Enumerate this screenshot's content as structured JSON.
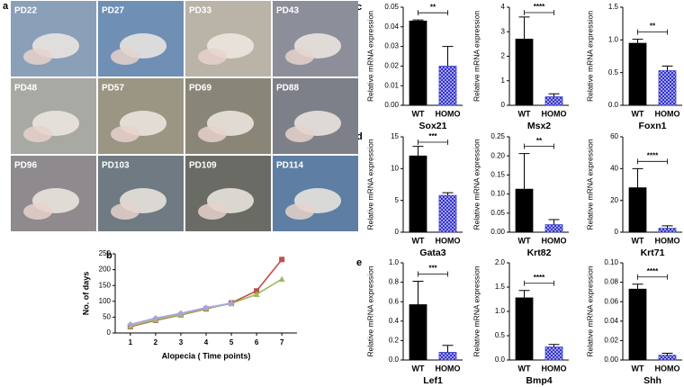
{
  "panel_labels": [
    "a",
    "b",
    "c",
    "d",
    "e"
  ],
  "photos": [
    "PD22",
    "PD27",
    "PD33",
    "PD43",
    "PD48",
    "PD57",
    "PD69",
    "PD88",
    "PD96",
    "PD103",
    "PD109",
    "PD114"
  ],
  "chart_data": [
    {
      "type": "line",
      "xlabel": "Alopecia ( Time points)",
      "ylabel": "No. of  days",
      "x": [
        1,
        2,
        3,
        4,
        5,
        6,
        7
      ],
      "xlim": [
        0.4,
        7.6
      ],
      "xticks": [
        1,
        2,
        3,
        4,
        5,
        6,
        7
      ],
      "ylim": [
        0,
        250
      ],
      "yticks": [
        0,
        50,
        100,
        150,
        200,
        250
      ],
      "series": [
        {
          "color": "#c0504d",
          "marker": "square",
          "values": [
            20,
            40,
            57,
            76,
            95,
            133,
            232
          ]
        },
        {
          "color": "#9bbb59",
          "marker": "triangle",
          "values": [
            22,
            42,
            58,
            78,
            93,
            122,
            170
          ]
        },
        {
          "color": "#a5a5e0",
          "marker": "diamond",
          "values": [
            27,
            47,
            62,
            80,
            94,
            null,
            null
          ]
        }
      ]
    },
    {
      "type": "bar",
      "xlabel": "Sox21",
      "ylabel": "Relative mRNA expression",
      "categories": [
        "WT",
        "HOMO"
      ],
      "colors": [
        "#000000",
        "#3333cc"
      ],
      "values": [
        0.043,
        0.02
      ],
      "errors": [
        0.0005,
        0.01
      ],
      "significance": "**",
      "ylim": [
        0,
        0.05
      ],
      "yticks": [
        {
          "value": 0,
          "label": "0.00"
        },
        0.01,
        0.02,
        0.03,
        0.04,
        0.05
      ]
    },
    {
      "type": "bar",
      "xlabel": "Msx2",
      "ylabel": "Relative mRNA expression",
      "categories": [
        "WT",
        "HOMO"
      ],
      "colors": [
        "#000000",
        "#3333cc"
      ],
      "values": [
        2.7,
        0.35
      ],
      "errors": [
        0.9,
        0.12
      ],
      "significance": "****",
      "ylim": [
        0,
        4
      ],
      "yticks": [
        0,
        1,
        2,
        3,
        4
      ]
    },
    {
      "type": "bar",
      "xlabel": "Foxn1",
      "ylabel": "Relative mRNA expression",
      "categories": [
        "WT",
        "HOMO"
      ],
      "colors": [
        "#000000",
        "#3333cc"
      ],
      "values": [
        0.95,
        0.53
      ],
      "errors": [
        0.06,
        0.07
      ],
      "significance": "**",
      "ylim": [
        0,
        1.5
      ],
      "yticks": [
        {
          "value": 0,
          "label": "0.0"
        },
        0.5,
        {
          "value": 1,
          "label": "1.0"
        },
        1.5
      ]
    },
    {
      "type": "bar",
      "xlabel": "Gata3",
      "ylabel": "Relative mRNA expression",
      "categories": [
        "WT",
        "HOMO"
      ],
      "colors": [
        "#000000",
        "#3333cc"
      ],
      "values": [
        12,
        5.8
      ],
      "errors": [
        1.5,
        0.4
      ],
      "significance": "***",
      "ylim": [
        0,
        15
      ],
      "yticks": [
        0,
        5,
        10,
        15
      ]
    },
    {
      "type": "bar",
      "xlabel": "Krt82",
      "ylabel": "Relative mRNA expression",
      "categories": [
        "WT",
        "HOMO"
      ],
      "colors": [
        "#000000",
        "#3333cc"
      ],
      "values": [
        0.113,
        0.02
      ],
      "errors": [
        0.093,
        0.013
      ],
      "significance": "**",
      "ylim": [
        0,
        0.25
      ],
      "yticks": [
        {
          "value": 0,
          "label": "0.00"
        },
        0.05,
        {
          "value": 0.1,
          "label": "0.10"
        },
        0.15,
        {
          "value": 0.2,
          "label": "0.20"
        },
        0.25
      ]
    },
    {
      "type": "bar",
      "xlabel": "Krt71",
      "ylabel": "Relative mRNA expression",
      "categories": [
        "WT",
        "HOMO"
      ],
      "colors": [
        "#000000",
        "#3333cc"
      ],
      "values": [
        28,
        2.5
      ],
      "errors": [
        12,
        1.5
      ],
      "significance": "****",
      "ylim": [
        0,
        60
      ],
      "yticks": [
        0,
        20,
        40,
        60
      ]
    },
    {
      "type": "bar",
      "xlabel": "Lef1",
      "ylabel": "Relative mRNA expression",
      "categories": [
        "WT",
        "HOMO"
      ],
      "colors": [
        "#000000",
        "#3333cc"
      ],
      "values": [
        0.57,
        0.08
      ],
      "errors": [
        0.24,
        0.07
      ],
      "significance": "***",
      "ylim": [
        0,
        1
      ],
      "yticks": [
        {
          "value": 0,
          "label": "0.0"
        },
        0.2,
        0.4,
        0.6,
        0.8,
        {
          "value": 1,
          "label": "1.0"
        }
      ]
    },
    {
      "type": "bar",
      "xlabel": "Bmp4",
      "ylabel": "Relative mRNA expression",
      "categories": [
        "WT",
        "HOMO"
      ],
      "colors": [
        "#000000",
        "#3333cc"
      ],
      "values": [
        1.28,
        0.27
      ],
      "errors": [
        0.15,
        0.05
      ],
      "significance": "****",
      "ylim": [
        0,
        2
      ],
      "yticks": [
        {
          "value": 0,
          "label": "0.0"
        },
        0.5,
        {
          "value": 1,
          "label": "1.0"
        },
        1.5,
        {
          "value": 2,
          "label": "2.0"
        }
      ]
    },
    {
      "type": "bar",
      "xlabel": "Shh",
      "ylabel": "Relative mRNA expression",
      "categories": [
        "WT",
        "HOMO"
      ],
      "colors": [
        "#000000",
        "#3333cc"
      ],
      "values": [
        0.073,
        0.005
      ],
      "errors": [
        0.005,
        0.002
      ],
      "significance": "****",
      "ylim": [
        0,
        0.1
      ],
      "yticks": [
        {
          "value": 0,
          "label": "0.00"
        },
        0.02,
        0.04,
        0.06,
        0.08,
        {
          "value": 0.1,
          "label": "0.10"
        }
      ]
    }
  ]
}
